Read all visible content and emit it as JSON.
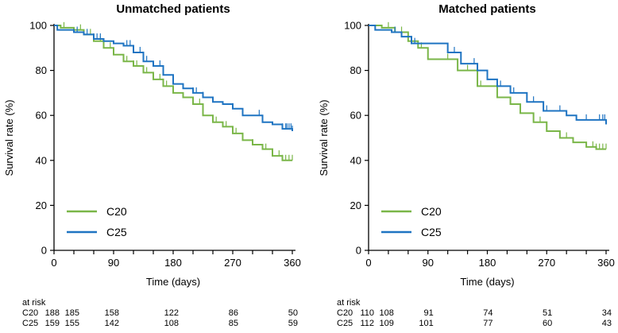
{
  "chart_data": [
    {
      "type": "line",
      "subtype": "kaplan-meier step",
      "title": "Unmatched patients",
      "xlabel": "Time (days)",
      "ylabel": "Survival rate (%)",
      "xlim": [
        0,
        360
      ],
      "ylim": [
        0,
        100
      ],
      "xticks": [
        0,
        90,
        180,
        270,
        360
      ],
      "yticks": [
        0,
        20,
        40,
        60,
        80,
        100
      ],
      "legend_position": "bottom-left",
      "series": [
        {
          "name": "C20",
          "color": "#7ab648",
          "x": [
            0,
            10,
            30,
            45,
            60,
            75,
            90,
            105,
            120,
            135,
            150,
            165,
            180,
            195,
            210,
            225,
            240,
            255,
            270,
            285,
            300,
            315,
            330,
            345,
            360
          ],
          "y": [
            100,
            99,
            98,
            96,
            93,
            90,
            87,
            84,
            82,
            79,
            76,
            73,
            70,
            68,
            65,
            60,
            57,
            55,
            52,
            49,
            47,
            45,
            42,
            40,
            40
          ],
          "censored": [
            15,
            40,
            55,
            70,
            85,
            110,
            120,
            125,
            140,
            150,
            160,
            170,
            180,
            210,
            220,
            240,
            245,
            260,
            275,
            300,
            320,
            340,
            345,
            350,
            355,
            360
          ]
        },
        {
          "name": "C25",
          "color": "#1f74c2",
          "x": [
            0,
            5,
            30,
            45,
            60,
            75,
            90,
            105,
            120,
            135,
            150,
            165,
            180,
            195,
            210,
            225,
            240,
            255,
            270,
            285,
            300,
            315,
            330,
            345,
            360
          ],
          "y": [
            100,
            98,
            97,
            96,
            94,
            93,
            92,
            91,
            88,
            84,
            82,
            78,
            74,
            72,
            70,
            68,
            66,
            65,
            63,
            60,
            60,
            57,
            56,
            54,
            53
          ],
          "censored": [
            35,
            50,
            60,
            65,
            70,
            110,
            115,
            130,
            140,
            160,
            210,
            215,
            225,
            270,
            310,
            345,
            350,
            352,
            355,
            358,
            360
          ]
        }
      ],
      "at_risk": {
        "label": "at risk",
        "times": [
          0,
          30,
          90,
          180,
          270,
          360
        ],
        "rows": [
          {
            "group": "C20",
            "values": [
              "188",
              "185",
              "158",
              "122",
              "86",
              "50"
            ]
          },
          {
            "group": "C25",
            "values": [
              "159",
              "155",
              "142",
              "108",
              "85",
              "59"
            ]
          }
        ]
      }
    },
    {
      "type": "line",
      "subtype": "kaplan-meier step",
      "title": "Matched patients",
      "xlabel": "Time (days)",
      "ylabel": "Survival rate (%)",
      "xlim": [
        0,
        360
      ],
      "ylim": [
        0,
        100
      ],
      "xticks": [
        0,
        90,
        180,
        270,
        360
      ],
      "yticks": [
        0,
        20,
        40,
        60,
        80,
        100
      ],
      "legend_position": "bottom-left",
      "series": [
        {
          "name": "C20",
          "color": "#7ab648",
          "x": [
            0,
            20,
            40,
            60,
            75,
            90,
            110,
            135,
            165,
            180,
            195,
            215,
            230,
            250,
            270,
            290,
            310,
            330,
            345,
            360
          ],
          "y": [
            100,
            99,
            97,
            93,
            90,
            85,
            85,
            80,
            73,
            73,
            68,
            65,
            61,
            57,
            53,
            50,
            48,
            46,
            45,
            45
          ],
          "censored": [
            30,
            50,
            80,
            120,
            150,
            170,
            230,
            260,
            300,
            340,
            345,
            350,
            355,
            360
          ]
        },
        {
          "name": "C25",
          "color": "#1f74c2",
          "x": [
            0,
            10,
            35,
            50,
            65,
            105,
            120,
            140,
            165,
            180,
            195,
            215,
            240,
            265,
            285,
            300,
            315,
            345,
            360
          ],
          "y": [
            100,
            98,
            97,
            95,
            92,
            92,
            88,
            83,
            80,
            76,
            73,
            70,
            66,
            62,
            62,
            60,
            58,
            58,
            56
          ],
          "censored": [
            40,
            70,
            130,
            160,
            200,
            220,
            250,
            270,
            290,
            330,
            350,
            355,
            358
          ]
        }
      ],
      "at_risk": {
        "label": "at risk",
        "times": [
          0,
          30,
          90,
          180,
          270,
          360
        ],
        "rows": [
          {
            "group": "C20",
            "values": [
              "110",
              "108",
              "91",
              "74",
              "51",
              "34"
            ]
          },
          {
            "group": "C25",
            "values": [
              "112",
              "109",
              "101",
              "77",
              "60",
              "43"
            ]
          }
        ]
      }
    }
  ]
}
